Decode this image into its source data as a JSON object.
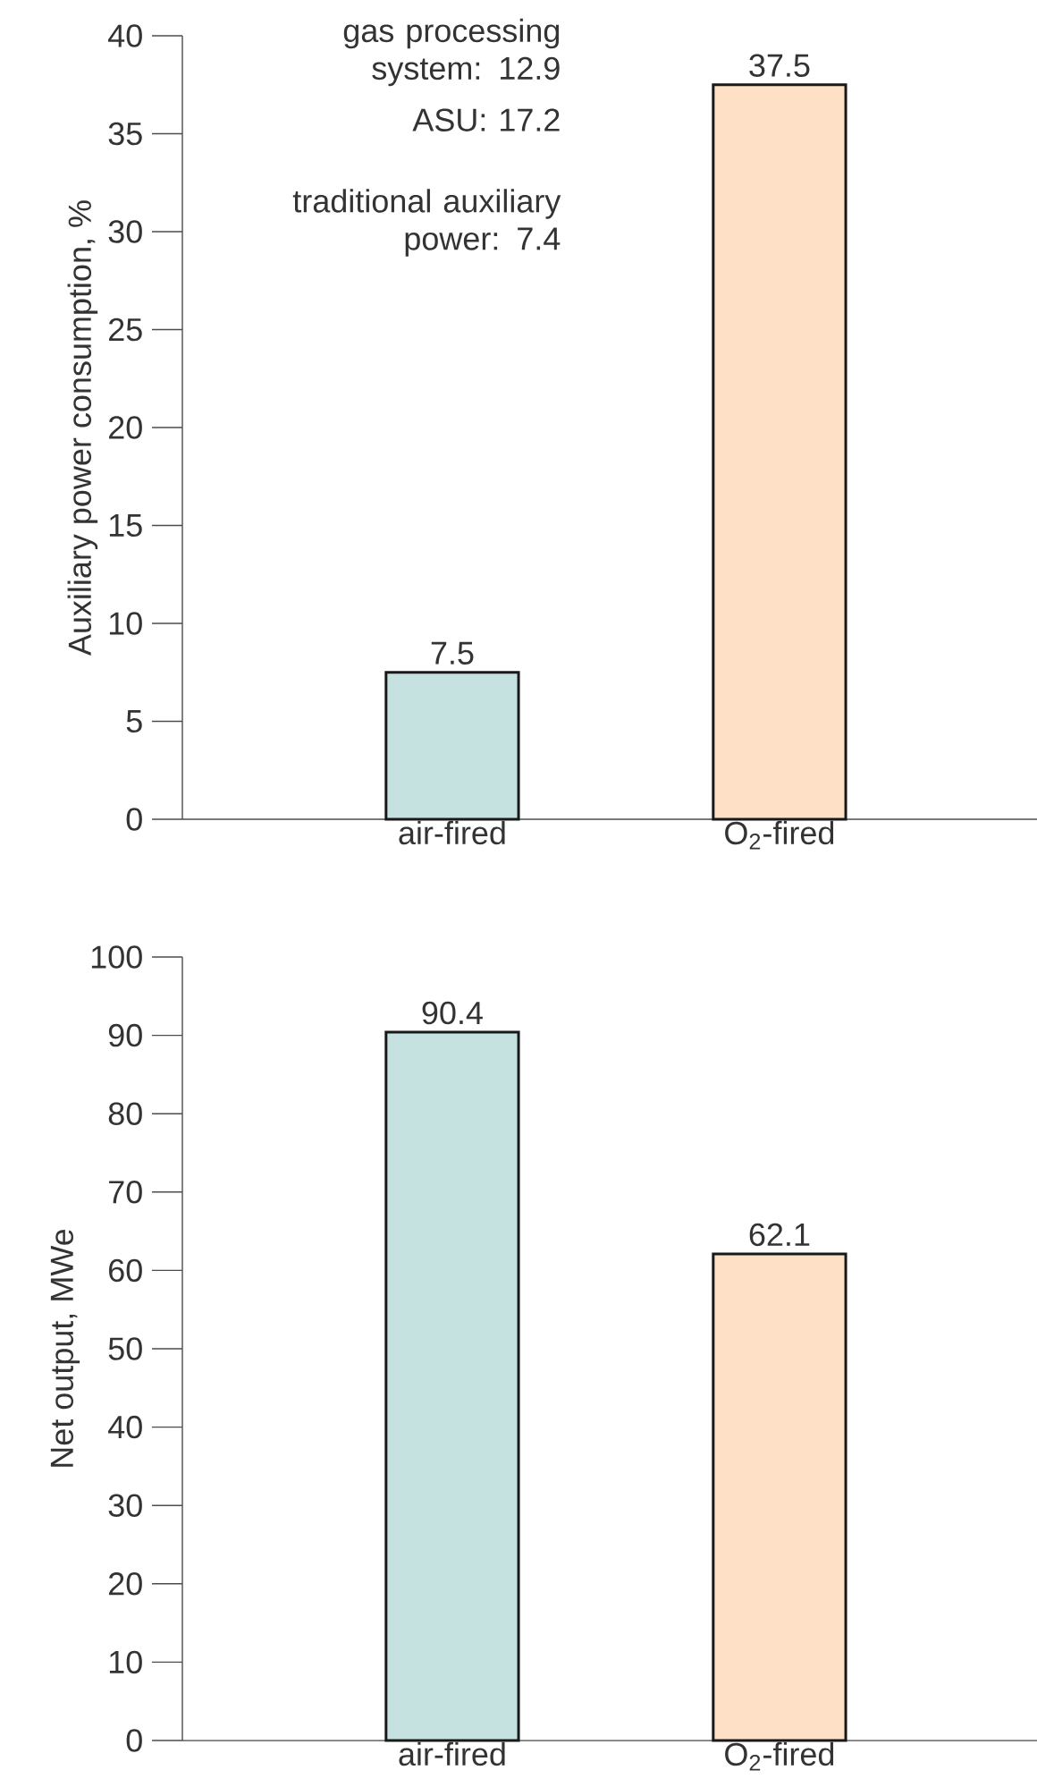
{
  "chart_data": [
    {
      "type": "bar",
      "ylabel": "Auxiliary power consumption, %",
      "categories": [
        "air-fired",
        "O$_{2}$-fired"
      ],
      "values": [
        7.5,
        37.5
      ],
      "colors": [
        "#c5e2e1",
        "#fde0c6"
      ],
      "ylim": [
        0,
        40
      ],
      "yticks": [
        0,
        5,
        10,
        15,
        20,
        25,
        30,
        35,
        40
      ],
      "data_labels": true,
      "annotations": [
        "gas processing system: 12.9",
        "ASU: 17.2",
        "traditional auxiliary power: 7.4"
      ]
    },
    {
      "type": "bar",
      "ylabel": "Net output, MWe",
      "categories": [
        "air-fired",
        "O$_{2}$-fired"
      ],
      "values": [
        90.4,
        62.1
      ],
      "colors": [
        "#c5e2e1",
        "#fde0c6"
      ],
      "ylim": [
        0,
        100
      ],
      "yticks": [
        0,
        10,
        20,
        30,
        40,
        50,
        60,
        70,
        80,
        90,
        100
      ],
      "data_labels": true
    }
  ]
}
